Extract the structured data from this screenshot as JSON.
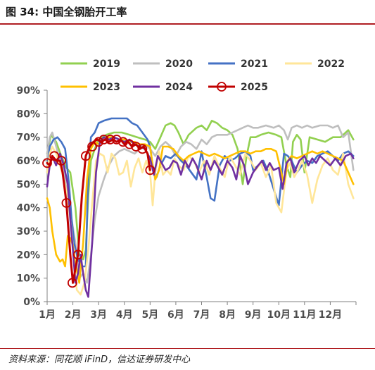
{
  "figure": {
    "title": "图 34:  中国全钢胎开工率",
    "source": "资料来源：同花顺 iFinD，信达证券研发中心"
  },
  "chart_data": {
    "type": "line",
    "x_tick_labels": [
      "1月",
      "2月",
      "3月",
      "4月",
      "5月",
      "6月",
      "7月",
      "8月",
      "9月",
      "10月",
      "11月",
      "12月"
    ],
    "x_domain": [
      1,
      13
    ],
    "ylim": [
      0,
      90
    ],
    "y_tick_labels": [
      "0%",
      "10%",
      "20%",
      "30%",
      "40%",
      "50%",
      "60%",
      "70%",
      "80%",
      "90%"
    ],
    "y_ticks": [
      0,
      10,
      20,
      30,
      40,
      50,
      60,
      70,
      80,
      90
    ],
    "legend_position": "top",
    "series": [
      {
        "name": "2019",
        "color": "#92d050",
        "marker": false,
        "x": [
          1.0,
          1.15,
          1.35,
          1.55,
          1.75,
          1.9,
          2.1,
          2.25,
          2.4,
          2.5,
          2.6,
          2.7,
          2.85,
          3.0,
          3.3,
          3.6,
          3.9,
          4.2,
          4.5,
          4.8,
          5.0,
          5.2,
          5.4,
          5.6,
          5.8,
          5.95,
          6.1,
          6.3,
          6.5,
          6.8,
          7.0,
          7.2,
          7.4,
          7.6,
          7.8,
          8.0,
          8.2,
          8.4,
          8.6,
          8.75,
          8.9,
          9.1,
          9.3,
          9.6,
          9.9,
          10.1,
          10.3,
          10.45,
          10.55,
          10.7,
          10.85,
          11.0,
          11.2,
          11.5,
          11.8,
          12.1,
          12.4,
          12.7,
          12.9
        ],
        "y": [
          63,
          71,
          68,
          62,
          57,
          55,
          40,
          20,
          18,
          22,
          45,
          60,
          65,
          69,
          71,
          72,
          72,
          71,
          70,
          69,
          68,
          65,
          70,
          75,
          76,
          75,
          72,
          67,
          71,
          74,
          75,
          73,
          77,
          76,
          74,
          73,
          71,
          65,
          50,
          62,
          70,
          70,
          71,
          72,
          71,
          70,
          58,
          53,
          68,
          71,
          69,
          55,
          70,
          69,
          68,
          70,
          70,
          73,
          69
        ]
      },
      {
        "name": "2020",
        "color": "#bfbfbf",
        "marker": false,
        "x": [
          1.0,
          1.1,
          1.2,
          1.3,
          1.45,
          1.6,
          1.8,
          1.95,
          2.1,
          2.25,
          2.4,
          2.55,
          2.7,
          2.85,
          3.0,
          3.2,
          3.4,
          3.6,
          3.8,
          4.0,
          4.2,
          4.4,
          4.6,
          4.8,
          5.0,
          5.2,
          5.4,
          5.6,
          5.8,
          6.0,
          6.2,
          6.4,
          6.6,
          6.8,
          7.0,
          7.2,
          7.4,
          7.6,
          7.8,
          8.0,
          8.2,
          8.4,
          8.6,
          8.8,
          9.0,
          9.2,
          9.5,
          9.8,
          10.0,
          10.2,
          10.35,
          10.5,
          10.7,
          10.9,
          11.1,
          11.3,
          11.6,
          11.9,
          12.1,
          12.3,
          12.5,
          12.7,
          12.9
        ],
        "y": [
          63,
          70,
          72,
          68,
          62,
          58,
          45,
          35,
          25,
          10,
          12,
          8,
          20,
          35,
          45,
          52,
          58,
          62,
          64,
          65,
          64,
          63,
          65,
          67,
          65,
          62,
          66,
          68,
          66,
          62,
          66,
          68,
          67,
          65,
          69,
          67,
          70,
          71,
          71,
          71,
          72,
          73,
          74,
          75,
          74,
          74,
          75,
          74,
          75,
          73,
          69,
          74,
          75,
          74,
          75,
          74,
          75,
          75,
          74,
          75,
          70,
          72,
          56
        ]
      },
      {
        "name": "2021",
        "color": "#4472c4",
        "marker": false,
        "x": [
          1.0,
          1.1,
          1.25,
          1.4,
          1.55,
          1.7,
          1.85,
          1.95,
          2.05,
          2.2,
          2.35,
          2.5,
          2.6,
          2.7,
          2.85,
          3.0,
          3.2,
          3.5,
          3.8,
          4.1,
          4.3,
          4.5,
          4.7,
          4.9,
          5.0,
          5.1,
          5.25,
          5.4,
          5.6,
          5.8,
          6.0,
          6.2,
          6.4,
          6.6,
          6.8,
          7.0,
          7.1,
          7.2,
          7.35,
          7.5,
          7.7,
          7.9,
          8.1,
          8.3,
          8.5,
          8.7,
          8.9,
          9.0,
          9.2,
          9.4,
          9.6,
          9.8,
          10.0,
          10.2,
          10.35,
          10.5,
          10.7,
          10.9,
          11.1,
          11.3,
          11.5,
          11.7,
          11.9,
          12.1,
          12.3,
          12.5,
          12.7,
          12.9
        ],
        "y": [
          55,
          66,
          69,
          70,
          68,
          65,
          50,
          35,
          25,
          18,
          15,
          15,
          55,
          70,
          72,
          76,
          77,
          78,
          78,
          78,
          76,
          75,
          72,
          69,
          66,
          58,
          53,
          58,
          62,
          61,
          63,
          60,
          58,
          55,
          52,
          64,
          58,
          53,
          44,
          43,
          58,
          62,
          60,
          61,
          63,
          64,
          62,
          56,
          58,
          60,
          55,
          48,
          41,
          63,
          62,
          60,
          55,
          58,
          60,
          59,
          62,
          63,
          64,
          62,
          60,
          63,
          64,
          62
        ]
      },
      {
        "name": "2022",
        "color": "#ffe699",
        "marker": false,
        "x": [
          1.0,
          1.1,
          1.2,
          1.35,
          1.5,
          1.65,
          1.8,
          1.95,
          2.05,
          2.15,
          2.3,
          2.45,
          2.6,
          2.75,
          2.9,
          3.05,
          3.2,
          3.35,
          3.5,
          3.65,
          3.8,
          3.95,
          4.1,
          4.25,
          4.4,
          4.55,
          4.7,
          4.85,
          5.0,
          5.1,
          5.2,
          5.35,
          5.5,
          5.65,
          5.8,
          5.95,
          6.1,
          6.3,
          6.5,
          6.7,
          6.9,
          7.1,
          7.3,
          7.5,
          7.7,
          7.9,
          8.1,
          8.3,
          8.5,
          8.7,
          8.9,
          9.1,
          9.3,
          9.5,
          9.7,
          9.9,
          10.1,
          10.3,
          10.45,
          10.6,
          10.75,
          10.9,
          11.1,
          11.3,
          11.5,
          11.7,
          11.9,
          12.1,
          12.3,
          12.5,
          12.7,
          12.9
        ],
        "y": [
          55,
          63,
          66,
          63,
          58,
          52,
          44,
          30,
          16,
          5,
          3,
          8,
          22,
          42,
          60,
          63,
          62,
          55,
          63,
          61,
          54,
          55,
          60,
          49,
          57,
          61,
          55,
          60,
          55,
          41,
          55,
          64,
          54,
          56,
          54,
          61,
          58,
          56,
          62,
          60,
          55,
          60,
          54,
          62,
          57,
          53,
          62,
          58,
          54,
          63,
          60,
          56,
          59,
          53,
          58,
          42,
          38,
          56,
          59,
          53,
          56,
          60,
          54,
          42,
          52,
          58,
          61,
          56,
          54,
          63,
          50,
          44
        ]
      },
      {
        "name": "2023",
        "color": "#ffc000",
        "marker": false,
        "x": [
          1.0,
          1.1,
          1.2,
          1.35,
          1.5,
          1.6,
          1.7,
          1.8,
          1.9,
          2.0,
          2.1,
          2.25,
          2.4,
          2.55,
          2.7,
          2.85,
          3.0,
          3.2,
          3.4,
          3.6,
          3.8,
          4.0,
          4.2,
          4.4,
          4.6,
          4.8,
          5.0,
          5.1,
          5.2,
          5.35,
          5.5,
          5.7,
          5.9,
          6.1,
          6.3,
          6.5,
          6.7,
          6.9,
          7.1,
          7.3,
          7.5,
          7.7,
          7.9,
          8.1,
          8.3,
          8.5,
          8.7,
          8.9,
          9.1,
          9.3,
          9.5,
          9.7,
          9.9,
          10.1,
          10.2,
          10.35,
          10.5,
          10.7,
          10.9,
          11.1,
          11.3,
          11.5,
          11.7,
          11.9,
          12.1,
          12.3,
          12.5,
          12.7,
          12.9
        ],
        "y": [
          44,
          40,
          30,
          20,
          17,
          18,
          15,
          28,
          27,
          24,
          16,
          8,
          25,
          52,
          65,
          68,
          67,
          69,
          70,
          70,
          69,
          69,
          68,
          68,
          67,
          67,
          66,
          58,
          52,
          56,
          66,
          66,
          65,
          62,
          60,
          62,
          63,
          64,
          63,
          62,
          63,
          62,
          61,
          62,
          63,
          64,
          64,
          63,
          64,
          64,
          65,
          65,
          64,
          55,
          50,
          60,
          62,
          61,
          62,
          63,
          64,
          63,
          64,
          63,
          62,
          61,
          60,
          55,
          50
        ]
      },
      {
        "name": "2024",
        "color": "#7030a0",
        "marker": false,
        "x": [
          1.0,
          1.1,
          1.2,
          1.35,
          1.5,
          1.65,
          1.8,
          1.9,
          2.0,
          2.1,
          2.2,
          2.3,
          2.4,
          2.5,
          2.6,
          2.75,
          2.9,
          3.05,
          3.2,
          3.4,
          3.6,
          3.8,
          4.0,
          4.2,
          4.4,
          4.6,
          4.8,
          5.0,
          5.15,
          5.3,
          5.45,
          5.6,
          5.75,
          5.9,
          6.05,
          6.2,
          6.35,
          6.5,
          6.65,
          6.8,
          7.0,
          7.2,
          7.35,
          7.5,
          7.65,
          7.8,
          8.0,
          8.2,
          8.35,
          8.5,
          8.65,
          8.8,
          9.0,
          9.2,
          9.35,
          9.5,
          9.65,
          9.8,
          10.0,
          10.15,
          10.3,
          10.45,
          10.6,
          10.8,
          11.0,
          11.15,
          11.3,
          11.45,
          11.6,
          11.8,
          12.0,
          12.2,
          12.4,
          12.6,
          12.8,
          12.9
        ],
        "y": [
          49,
          58,
          62,
          58,
          63,
          58,
          50,
          35,
          22,
          8,
          12,
          20,
          12,
          5,
          2,
          25,
          55,
          68,
          70,
          69,
          70,
          69,
          68,
          69,
          67,
          66,
          65,
          61,
          54,
          62,
          59,
          56,
          57,
          60,
          59,
          54,
          60,
          57,
          61,
          58,
          52,
          60,
          56,
          60,
          57,
          54,
          60,
          57,
          52,
          62,
          58,
          50,
          55,
          58,
          60,
          56,
          59,
          56,
          57,
          48,
          59,
          61,
          55,
          60,
          62,
          58,
          61,
          59,
          62,
          60,
          58,
          61,
          58,
          62,
          63,
          61
        ]
      },
      {
        "name": "2025",
        "color": "#c00000",
        "marker": true,
        "x": [
          1.0,
          1.1,
          1.2,
          1.35,
          1.5,
          1.6,
          1.75,
          1.9,
          2.0,
          2.1,
          2.2,
          2.35,
          2.5,
          2.65,
          2.8,
          2.95,
          3.1,
          3.25,
          3.4,
          3.55,
          3.7,
          3.85,
          4.0,
          4.15,
          4.3,
          4.45,
          4.6,
          4.75,
          4.9,
          5.0
        ],
        "y": [
          59,
          58,
          62,
          60,
          60,
          55,
          42,
          20,
          8,
          14,
          20,
          45,
          62,
          66,
          68,
          69,
          68,
          69,
          68,
          69,
          68,
          69,
          67,
          68,
          66,
          67,
          65,
          66,
          63,
          56
        ],
        "marker_x": [
          1.0,
          1.28,
          1.55,
          1.75,
          1.98,
          2.2,
          2.5,
          2.75,
          3.0,
          3.2,
          3.45,
          3.7,
          3.95,
          4.2,
          4.45,
          4.7,
          5.0
        ],
        "marker_y": [
          59,
          62,
          60,
          42,
          8,
          20,
          62,
          66,
          68,
          69,
          69,
          69,
          68,
          67,
          66,
          65,
          56
        ]
      }
    ]
  }
}
